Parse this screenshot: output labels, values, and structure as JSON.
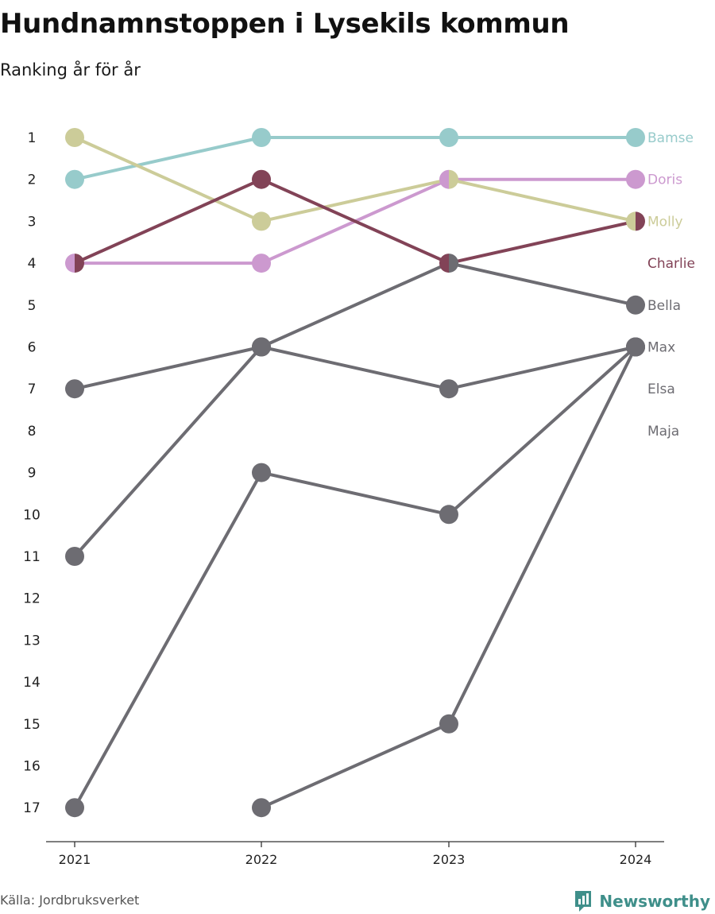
{
  "title": "Hundnamnstoppen i Lysekils kommun",
  "subtitle": "Ranking år för år",
  "source": "Källa: Jordbruksverket",
  "brand": {
    "name": "Newsworthy",
    "icon": "bar-chart-icon",
    "color": "#3f8f8a"
  },
  "chart_data": {
    "type": "line",
    "x": [
      "2021",
      "2022",
      "2023",
      "2024"
    ],
    "y_ticks": [
      "1",
      "2",
      "3",
      "4",
      "5",
      "6",
      "7",
      "8",
      "9",
      "10",
      "11",
      "12",
      "13",
      "14",
      "15",
      "16",
      "17"
    ],
    "ylim": [
      1,
      17
    ],
    "y_inverted": true,
    "grid": false,
    "series": [
      {
        "name": "Bamse",
        "color": "#97cbcb",
        "values": [
          2,
          1,
          1,
          1
        ]
      },
      {
        "name": "Doris",
        "color": "#cc99cf",
        "values": [
          4,
          4,
          2,
          2
        ]
      },
      {
        "name": "Molly",
        "color": "#cccc99",
        "values": [
          1,
          3,
          2,
          3
        ]
      },
      {
        "name": "Charlie",
        "color": "#824357",
        "values": [
          4,
          2,
          4,
          3
        ]
      },
      {
        "name": "Bella",
        "color": "#6d6c72",
        "values": [
          11,
          6,
          4,
          5
        ]
      },
      {
        "name": "Max",
        "color": "#6d6c72",
        "values": [
          7,
          6,
          7,
          6
        ]
      },
      {
        "name": "Elsa",
        "color": "#6d6c72",
        "values": [
          17,
          9,
          10,
          6
        ]
      },
      {
        "name": "Maja",
        "color": "#6d6c72",
        "values": [
          null,
          17,
          15,
          6
        ]
      }
    ],
    "label_ranks": [
      1,
      2,
      3,
      4,
      5,
      6,
      7,
      8
    ]
  }
}
